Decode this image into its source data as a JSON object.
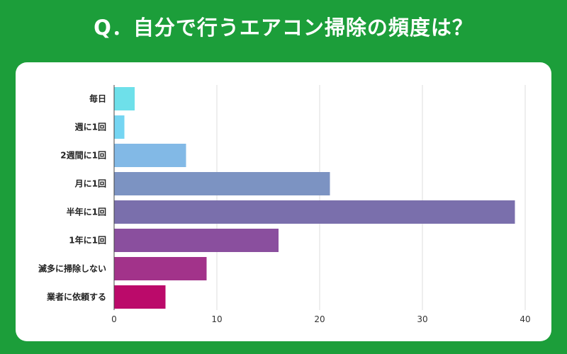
{
  "header": {
    "title": "Q．自分で行うエアコン掃除の頻度は？"
  },
  "colors": {
    "background": "#1c9e3a",
    "card": "#ffffff",
    "bars": [
      "#6ee0ea",
      "#75d5f2",
      "#82b9e6",
      "#7c93c2",
      "#7a6fac",
      "#8a4f9e",
      "#a2338a",
      "#bb0a6a"
    ]
  },
  "chart_data": {
    "type": "bar",
    "orientation": "horizontal",
    "categories": [
      "毎日",
      "週に1回",
      "2週間に1回",
      "月に1回",
      "半年に1回",
      "1年に1回",
      "滅多に掃除しない",
      "業者に依頼する"
    ],
    "values": [
      2,
      1,
      7,
      21,
      39,
      16,
      9,
      5
    ],
    "xlim": [
      0,
      40
    ],
    "xticks": [
      0,
      10,
      20,
      30,
      40
    ],
    "grid": true
  }
}
